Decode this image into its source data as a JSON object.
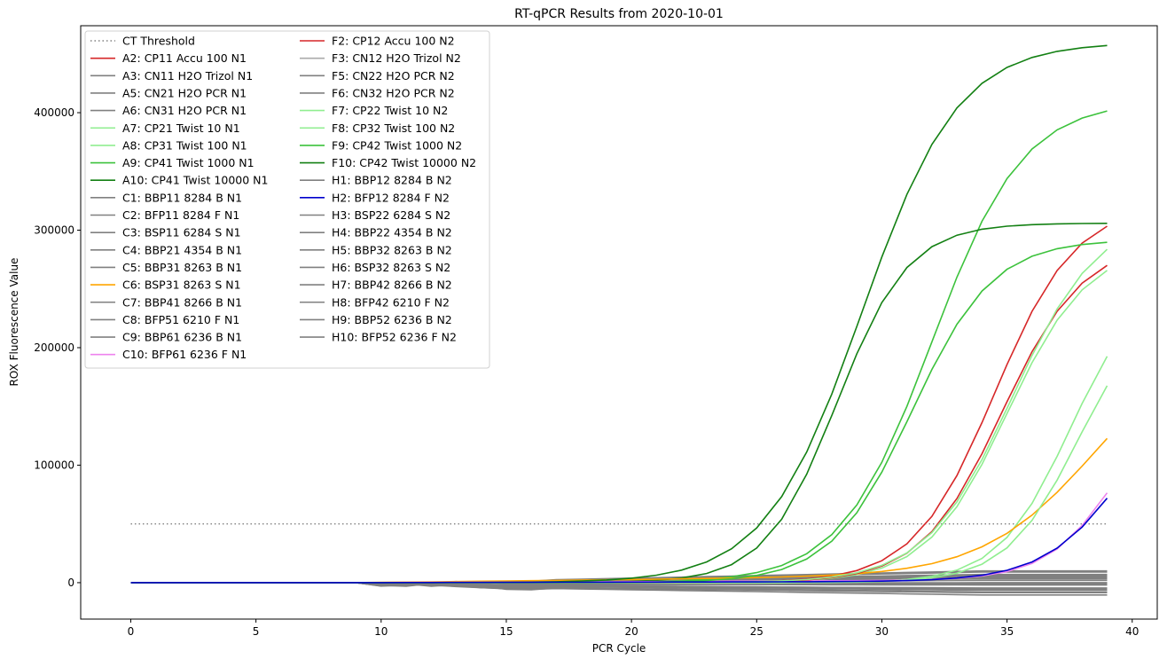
{
  "chart_data": {
    "type": "line",
    "title": "RT-qPCR Results from 2020-10-01",
    "xlabel": "PCR Cycle",
    "ylabel": "ROX Fluorescence Value",
    "xlim": [
      -2,
      41
    ],
    "ylim": [
      -31000,
      474000
    ],
    "xticks": [
      0,
      5,
      10,
      15,
      20,
      25,
      30,
      35,
      40
    ],
    "yticks": [
      0,
      100000,
      200000,
      300000,
      400000
    ],
    "grid": false,
    "legend_position": "top-left",
    "threshold": {
      "name": "CT Threshold",
      "y": 50000,
      "color": "#808080",
      "style": "dotted"
    },
    "series": [
      {
        "name": "A2: CP11 Accu 100 N1",
        "color": "#d62728",
        "plateau": 322000,
        "mid": 34.5,
        "k": 0.62,
        "tail": 0
      },
      {
        "name": "A3: CN11 H2O Trizol N1",
        "color": "#808080",
        "tail": -5000
      },
      {
        "name": "A5: CN21 H2O PCR N1",
        "color": "#808080",
        "tail": 8000
      },
      {
        "name": "A6: CN31 H2O PCR N1",
        "color": "#808080",
        "tail": -2000
      },
      {
        "name": "A7: CP21 Twist 10 N1",
        "color": "#90ee90",
        "plateau": 260000,
        "mid": 37.5,
        "k": 0.7,
        "tail": 0
      },
      {
        "name": "A8: CP31 Twist 100 N1",
        "color": "#90ee90",
        "plateau": 288000,
        "mid": 35.0,
        "k": 0.62,
        "tail": 0
      },
      {
        "name": "A9: CP41 Twist 1000 N1",
        "color": "#3cc23c",
        "plateau": 410000,
        "mid": 32.0,
        "k": 0.55,
        "tail": 0
      },
      {
        "name": "A10: CP41 Twist 10000 N1",
        "color": "#138013",
        "plateau": 306000,
        "mid": 28.2,
        "k": 0.7,
        "tail": 0
      },
      {
        "name": "C1: BBP11 8284 B N1",
        "color": "#808080",
        "tail": 3000
      },
      {
        "name": "C2: BFP11 8284 F N1",
        "color": "#808080",
        "tail": -6000
      },
      {
        "name": "C3: BSP11 6284 S N1",
        "color": "#808080",
        "tail": 10000
      },
      {
        "name": "C4: BBP21 4354 B N1",
        "color": "#808080",
        "tail": 1000
      },
      {
        "name": "C5: BBP31 8263 B N1",
        "color": "#808080",
        "tail": -3000
      },
      {
        "name": "C6: BSP31 8263 S N1",
        "color": "#ffa500",
        "plateau": 210000,
        "mid": 38.5,
        "k": 0.45,
        "tail": 6000
      },
      {
        "name": "C7: BBP41 8266 B N1",
        "color": "#808080",
        "tail": 5000
      },
      {
        "name": "C8: BFP51 6210 F N1",
        "color": "#808080",
        "tail": -8000
      },
      {
        "name": "C9: BBP61 6236 B N1",
        "color": "#808080",
        "tail": 7000
      },
      {
        "name": "C10: BFP61 6236 F N1",
        "color": "#ee82ee",
        "plateau": 180000,
        "mid": 39.5,
        "k": 0.7,
        "tail": 2000
      },
      {
        "name": "F2: CP12 Accu 100 N2",
        "color": "#d62728",
        "plateau": 290000,
        "mid": 34.8,
        "k": 0.62,
        "tail": 0
      },
      {
        "name": "F3: CN12 H2O Trizol N2",
        "color": "#aaaaaa",
        "tail": 4000
      },
      {
        "name": "F5: CN22 H2O PCR N2",
        "color": "#808080",
        "tail": -1000
      },
      {
        "name": "F6: CN32 H2O PCR N2",
        "color": "#808080",
        "tail": 2000
      },
      {
        "name": "F7: CP22 Twist 10 N2",
        "color": "#90ee90",
        "plateau": 240000,
        "mid": 37.8,
        "k": 0.7,
        "tail": 0
      },
      {
        "name": "F8: CP32 Twist 100 N2",
        "color": "#90ee90",
        "plateau": 315000,
        "mid": 35.2,
        "k": 0.58,
        "tail": 0
      },
      {
        "name": "F9: CP42 Twist 1000 N2",
        "color": "#3cc23c",
        "plateau": 292000,
        "mid": 31.2,
        "k": 0.62,
        "tail": 0
      },
      {
        "name": "F10: CP42 Twist 10000 N2",
        "color": "#138013",
        "plateau": 460000,
        "mid": 29.2,
        "k": 0.52,
        "tail": 0
      },
      {
        "name": "H1: BBP12 8284 B N2",
        "color": "#808080",
        "tail": -4000
      },
      {
        "name": "H2: BFP12 8284 F N2",
        "color": "#0000cd",
        "plateau": 200000,
        "mid": 40.0,
        "k": 0.6,
        "tail": 1000
      },
      {
        "name": "H3: BSP22 6284 S N2",
        "color": "#808080",
        "tail": 6000
      },
      {
        "name": "H4: BBP22 4354 B N2",
        "color": "#808080",
        "tail": -7000
      },
      {
        "name": "H5: BBP32 8263 B N2",
        "color": "#808080",
        "tail": 9000
      },
      {
        "name": "H6: BSP32 8263 S N2",
        "color": "#808080",
        "tail": 0
      },
      {
        "name": "H7: BBP42 8266 B N2",
        "color": "#808080",
        "tail": 4500
      },
      {
        "name": "H8: BFP42 6210 F N2",
        "color": "#808080",
        "tail": -2500
      },
      {
        "name": "H9: BBP52 6236 B N2",
        "color": "#808080",
        "tail": 11000
      },
      {
        "name": "H10: BFP52 6236 F N2",
        "color": "#808080",
        "tail": -5500
      }
    ]
  }
}
